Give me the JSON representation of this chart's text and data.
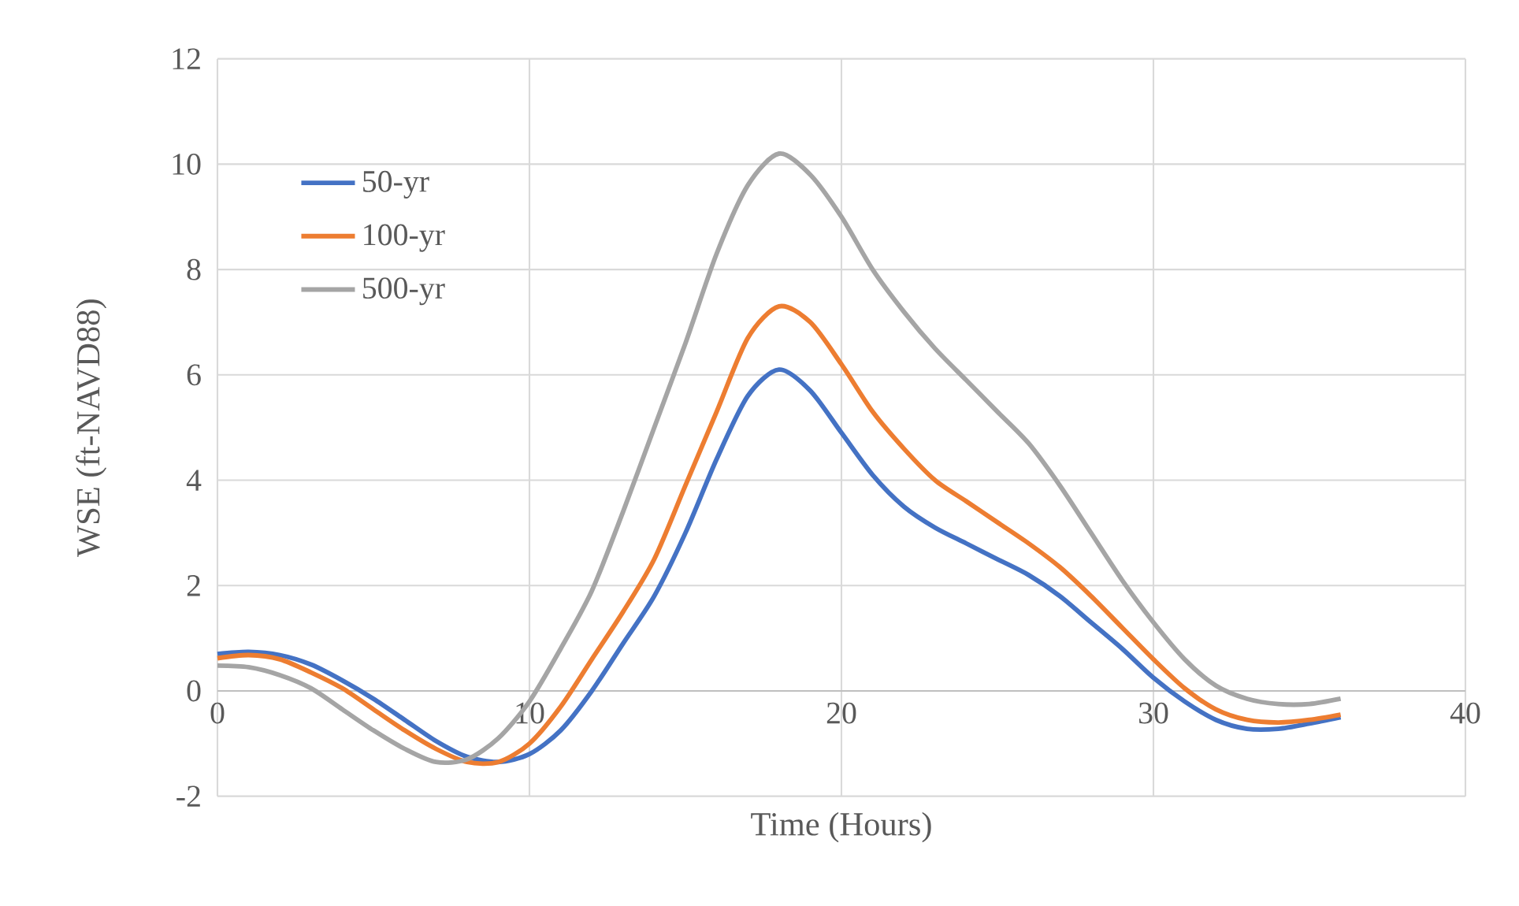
{
  "chart_data": {
    "type": "line",
    "xlabel": "Time (Hours)",
    "ylabel": "WSE (ft-NAVD88)",
    "x": [
      0,
      1,
      2,
      3,
      4,
      5,
      6,
      7,
      8,
      9,
      10,
      11,
      12,
      13,
      14,
      15,
      16,
      17,
      18,
      19,
      20,
      21,
      22,
      23,
      24,
      25,
      26,
      27,
      28,
      29,
      30,
      31,
      32,
      33,
      34,
      35,
      36
    ],
    "series": [
      {
        "name": "50-yr",
        "color": "#4472c4",
        "values": [
          0.7,
          0.74,
          0.68,
          0.5,
          0.2,
          -0.15,
          -0.55,
          -0.95,
          -1.25,
          -1.35,
          -1.2,
          -0.75,
          0.0,
          0.9,
          1.8,
          3.0,
          4.4,
          5.6,
          6.1,
          5.7,
          4.9,
          4.1,
          3.5,
          3.1,
          2.8,
          2.5,
          2.2,
          1.8,
          1.3,
          0.8,
          0.25,
          -0.2,
          -0.55,
          -0.72,
          -0.72,
          -0.62,
          -0.5
        ]
      },
      {
        "name": "100-yr",
        "color": "#ed7d31",
        "values": [
          0.62,
          0.68,
          0.6,
          0.35,
          0.05,
          -0.35,
          -0.75,
          -1.1,
          -1.35,
          -1.35,
          -1.0,
          -0.3,
          0.6,
          1.5,
          2.5,
          3.9,
          5.3,
          6.7,
          7.3,
          7.0,
          6.2,
          5.3,
          4.6,
          4.0,
          3.6,
          3.2,
          2.8,
          2.35,
          1.8,
          1.2,
          0.6,
          0.05,
          -0.35,
          -0.55,
          -0.6,
          -0.55,
          -0.45
        ]
      },
      {
        "name": "500-yr",
        "color": "#a5a5a5",
        "values": [
          0.48,
          0.45,
          0.3,
          0.05,
          -0.35,
          -0.75,
          -1.1,
          -1.35,
          -1.3,
          -0.9,
          -0.2,
          0.8,
          1.9,
          3.4,
          5.0,
          6.6,
          8.3,
          9.6,
          10.2,
          9.8,
          9.0,
          8.0,
          7.2,
          6.5,
          5.9,
          5.3,
          4.7,
          3.9,
          3.0,
          2.1,
          1.3,
          0.6,
          0.1,
          -0.15,
          -0.25,
          -0.25,
          -0.15
        ]
      }
    ],
    "xlim": [
      0,
      40
    ],
    "ylim": [
      -2,
      12
    ],
    "xticks": [
      0,
      10,
      20,
      30,
      40
    ],
    "yticks": [
      -2,
      0,
      2,
      4,
      6,
      8,
      10,
      12
    ],
    "grid": true,
    "legend": "top left",
    "marker": "none",
    "line_style": "solid"
  }
}
